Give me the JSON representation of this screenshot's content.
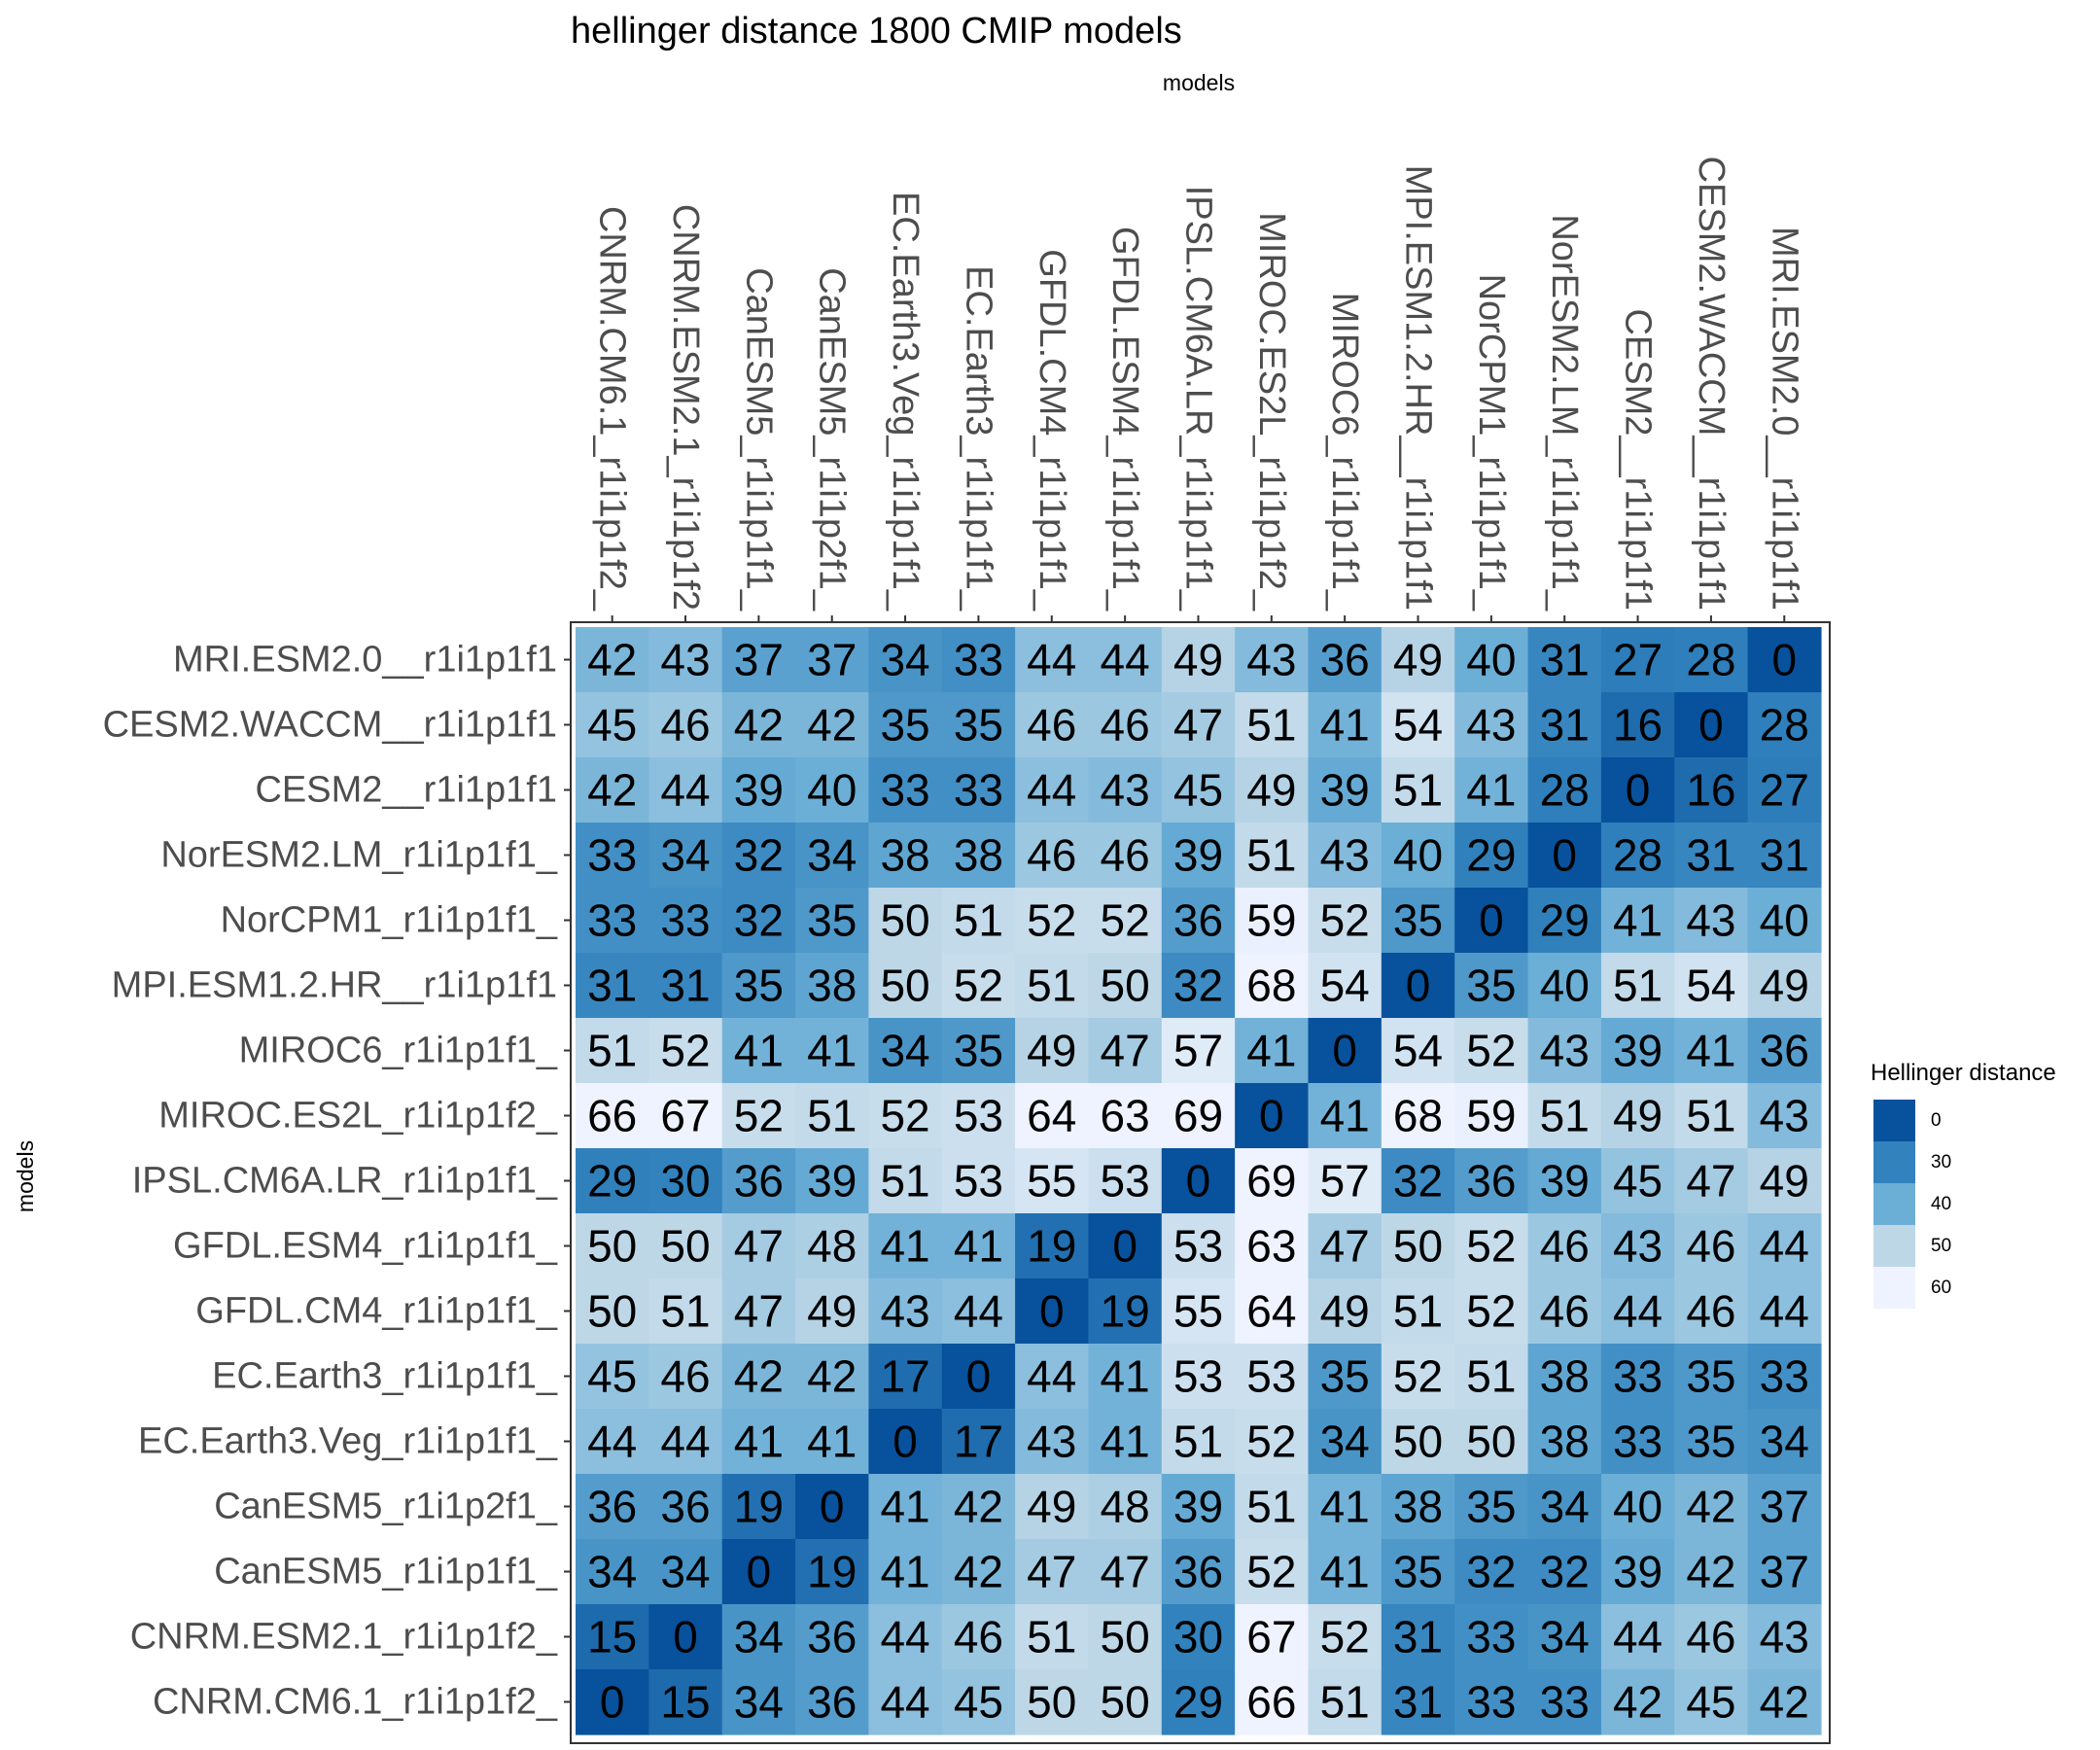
{
  "chart_data": {
    "type": "heatmap",
    "title": "hellinger distance 1800 CMIP models",
    "xlabel": "models",
    "ylabel": "models",
    "x_categories": [
      "CNRM.CM6.1_r1i1p1f2_",
      "CNRM.ESM2.1_r1i1p1f2",
      "CanESM5_r1i1p1f1_",
      "CanESM5_r1i1p2f1_",
      "EC.Earth3.Veg_r1i1p1f1_",
      "EC.Earth3_r1i1p1f1_",
      "GFDL.CM4_r1i1p1f1_",
      "GFDL.ESM4_r1i1p1f1_",
      "IPSL.CM6A.LR_r1i1p1f1_",
      "MIROC.ES2L_r1i1p1f2_",
      "MIROC6_r1i1p1f1_",
      "MPI.ESM1.2.HR__r1i1p1f1",
      "NorCPM1_r1i1p1f1_",
      "NorESM2.LM_r1i1p1f1_",
      "CESM2__r1i1p1f1",
      "CESM2.WACCM__r1i1p1f1",
      "MRI.ESM2.0__r1i1p1f1"
    ],
    "y_categories_top_to_bottom": [
      "MRI.ESM2.0__r1i1p1f1",
      "CESM2.WACCM__r1i1p1f1",
      "CESM2__r1i1p1f1",
      "NorESM2.LM_r1i1p1f1_",
      "NorCPM1_r1i1p1f1_",
      "MPI.ESM1.2.HR__r1i1p1f1",
      "MIROC6_r1i1p1f1_",
      "MIROC.ES2L_r1i1p1f2_",
      "IPSL.CM6A.LR_r1i1p1f1_",
      "GFDL.ESM4_r1i1p1f1_",
      "GFDL.CM4_r1i1p1f1_",
      "EC.Earth3_r1i1p1f1_",
      "EC.Earth3.Veg_r1i1p1f1_",
      "CanESM5_r1i1p2f1_",
      "CanESM5_r1i1p1f1_",
      "CNRM.ESM2.1_r1i1p1f2_",
      "CNRM.CM6.1_r1i1p1f2_"
    ],
    "values": [
      [
        42,
        43,
        37,
        37,
        34,
        33,
        44,
        44,
        49,
        43,
        36,
        49,
        40,
        31,
        27,
        28,
        0
      ],
      [
        45,
        46,
        42,
        42,
        35,
        35,
        46,
        46,
        47,
        51,
        41,
        54,
        43,
        31,
        16,
        0,
        28
      ],
      [
        42,
        44,
        39,
        40,
        33,
        33,
        44,
        43,
        45,
        49,
        39,
        51,
        41,
        28,
        0,
        16,
        27
      ],
      [
        33,
        34,
        32,
        34,
        38,
        38,
        46,
        46,
        39,
        51,
        43,
        40,
        29,
        0,
        28,
        31,
        31
      ],
      [
        33,
        33,
        32,
        35,
        50,
        51,
        52,
        52,
        36,
        59,
        52,
        35,
        0,
        29,
        41,
        43,
        40
      ],
      [
        31,
        31,
        35,
        38,
        50,
        52,
        51,
        50,
        32,
        68,
        54,
        0,
        35,
        40,
        51,
        54,
        49
      ],
      [
        51,
        52,
        41,
        41,
        34,
        35,
        49,
        47,
        57,
        41,
        0,
        54,
        52,
        43,
        39,
        41,
        36
      ],
      [
        66,
        67,
        52,
        51,
        52,
        53,
        64,
        63,
        69,
        0,
        41,
        68,
        59,
        51,
        49,
        51,
        43
      ],
      [
        29,
        30,
        36,
        39,
        51,
        53,
        55,
        53,
        0,
        69,
        57,
        32,
        36,
        39,
        45,
        47,
        49
      ],
      [
        50,
        50,
        47,
        48,
        41,
        41,
        19,
        0,
        53,
        63,
        47,
        50,
        52,
        46,
        43,
        46,
        44
      ],
      [
        50,
        51,
        47,
        49,
        43,
        44,
        0,
        19,
        55,
        64,
        49,
        51,
        52,
        46,
        44,
        46,
        44
      ],
      [
        45,
        46,
        42,
        42,
        17,
        0,
        44,
        41,
        53,
        53,
        35,
        52,
        51,
        38,
        33,
        35,
        33
      ],
      [
        44,
        44,
        41,
        41,
        0,
        17,
        43,
        41,
        51,
        52,
        34,
        50,
        50,
        38,
        33,
        35,
        34
      ],
      [
        36,
        36,
        19,
        0,
        41,
        42,
        49,
        48,
        39,
        51,
        41,
        38,
        35,
        34,
        40,
        42,
        37
      ],
      [
        34,
        34,
        0,
        19,
        41,
        42,
        47,
        47,
        36,
        52,
        41,
        35,
        32,
        32,
        39,
        42,
        37
      ],
      [
        15,
        0,
        34,
        36,
        44,
        46,
        51,
        50,
        30,
        67,
        52,
        31,
        33,
        34,
        44,
        46,
        43
      ],
      [
        0,
        15,
        34,
        36,
        44,
        45,
        50,
        50,
        29,
        66,
        51,
        31,
        33,
        33,
        42,
        45,
        42
      ]
    ],
    "legend": {
      "title": "Hellinger distance",
      "placement": "right",
      "breaks": [
        0,
        30,
        40,
        50,
        60
      ],
      "labels": [
        "0",
        "30",
        "40",
        "50",
        "60"
      ],
      "colors": [
        "#08519c",
        "#3182bd",
        "#6baed6",
        "#bdd7e7",
        "#eff3ff"
      ]
    },
    "grid": false,
    "panel_border_color": "#333333"
  }
}
